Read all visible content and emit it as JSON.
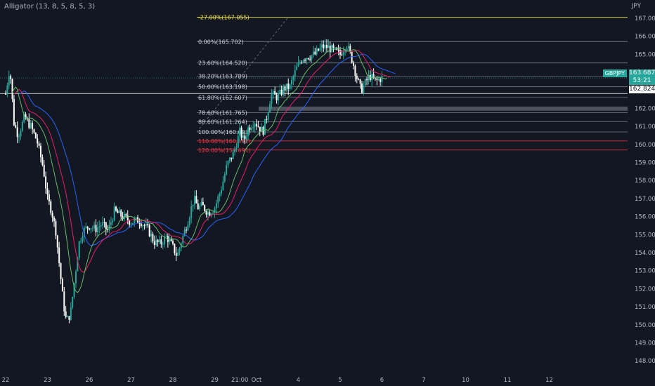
{
  "indicator": "Alligator (13, 8, 5, 8, 5, 3)",
  "currency": "JPY",
  "symbol": "GBPJPY",
  "current_price": "163.687",
  "countdown": "53:21",
  "level_price": "162.824",
  "colors": {
    "background": "#131722",
    "up": "#26a69a",
    "down": "#ef5350",
    "candle": "#ffffff",
    "jaw": "#2962ff",
    "teeth": "#e91e63",
    "lips": "#66bb6a",
    "fib": "#787b86",
    "fib_top": "#f0e442",
    "fib_ext": "#f23645"
  },
  "chart_data": {
    "type": "candlestick",
    "ylim": [
      147.5,
      167.7
    ],
    "y_ticks": [
      "148.000",
      "149.000",
      "150.000",
      "151.000",
      "152.000",
      "153.000",
      "154.000",
      "155.000",
      "156.000",
      "157.000",
      "158.000",
      "159.000",
      "160.000",
      "161.000",
      "162.000",
      "163.000",
      "164.000",
      "165.000",
      "166.000",
      "167.000"
    ],
    "x_ticks": [
      {
        "label": "22",
        "day": 0
      },
      {
        "label": "23",
        "day": 1
      },
      {
        "label": "26",
        "day": 2
      },
      {
        "label": "27",
        "day": 3
      },
      {
        "label": "28",
        "day": 4
      },
      {
        "label": "29",
        "day": 5
      },
      {
        "label": "21:00",
        "day": 5.6
      },
      {
        "label": "Oct",
        "day": 6
      },
      {
        "label": "4",
        "day": 7
      },
      {
        "label": "5",
        "day": 8
      },
      {
        "label": "6",
        "day": 9
      },
      {
        "label": "7",
        "day": 10
      },
      {
        "label": "10",
        "day": 11
      },
      {
        "label": "11",
        "day": 12
      },
      {
        "label": "12",
        "day": 13
      }
    ],
    "fib_levels": [
      {
        "label": "-27.00%(167.055)",
        "price": 167.055,
        "kind": "top"
      },
      {
        "label": "0.00%(165.702)",
        "price": 165.702,
        "kind": "normal"
      },
      {
        "label": "23.60%(164.520)",
        "price": 164.52,
        "kind": "normal"
      },
      {
        "label": "38.20%(163.789)",
        "price": 163.789,
        "kind": "normal"
      },
      {
        "label": "50.00%(163.198)",
        "price": 163.198,
        "kind": "normal"
      },
      {
        "label": "61.80%(162.607)",
        "price": 162.607,
        "kind": "normal"
      },
      {
        "label": "78.60%(161.765)",
        "price": 161.765,
        "kind": "normal"
      },
      {
        "label": "88.60%(161.264)",
        "price": 161.264,
        "kind": "normal"
      },
      {
        "label": "100.00%(160.693)",
        "price": 160.693,
        "kind": "normal"
      },
      {
        "label": "110.00%(160.192)",
        "price": 160.192,
        "kind": "ext"
      },
      {
        "label": "120.00%(159.691)",
        "price": 159.691,
        "kind": "ext"
      }
    ],
    "horizontal_line": 162.824,
    "close_path": [
      [
        0.0,
        162.8
      ],
      [
        0.1,
        164.3
      ],
      [
        0.2,
        161.2
      ],
      [
        0.3,
        160.5
      ],
      [
        0.45,
        161.5
      ],
      [
        0.6,
        161.0
      ],
      [
        0.75,
        160.2
      ],
      [
        0.9,
        158.7
      ],
      [
        1.0,
        157.0
      ],
      [
        1.1,
        156.3
      ],
      [
        1.2,
        155.2
      ],
      [
        1.3,
        153.0
      ],
      [
        1.38,
        151.2
      ],
      [
        1.45,
        150.2
      ],
      [
        1.55,
        150.6
      ],
      [
        1.65,
        152.5
      ],
      [
        1.75,
        154.5
      ],
      [
        1.85,
        155.2
      ],
      [
        2.0,
        155.5
      ],
      [
        2.15,
        155.3
      ],
      [
        2.3,
        155.6
      ],
      [
        2.45,
        155.2
      ],
      [
        2.6,
        156.3
      ],
      [
        2.8,
        156.0
      ],
      [
        3.0,
        155.7
      ],
      [
        3.2,
        155.8
      ],
      [
        3.4,
        155.3
      ],
      [
        3.55,
        154.6
      ],
      [
        3.7,
        154.5
      ],
      [
        3.85,
        154.9
      ],
      [
        4.0,
        154.3
      ],
      [
        4.1,
        153.8
      ],
      [
        4.2,
        154.6
      ],
      [
        4.35,
        155.7
      ],
      [
        4.5,
        157.0
      ],
      [
        4.6,
        156.5
      ],
      [
        4.7,
        156.6
      ],
      [
        4.85,
        156.2
      ],
      [
        5.0,
        156.5
      ],
      [
        5.15,
        157.5
      ],
      [
        5.3,
        158.9
      ],
      [
        5.45,
        159.5
      ],
      [
        5.6,
        160.7
      ],
      [
        5.7,
        160.2
      ],
      [
        5.8,
        160.9
      ],
      [
        5.95,
        161.3
      ],
      [
        6.05,
        161.0
      ],
      [
        6.15,
        160.7
      ],
      [
        6.25,
        161.6
      ],
      [
        6.35,
        162.8
      ],
      [
        6.5,
        162.6
      ],
      [
        6.65,
        163.1
      ],
      [
        6.8,
        163.2
      ],
      [
        6.95,
        164.2
      ],
      [
        7.1,
        164.8
      ],
      [
        7.25,
        164.9
      ],
      [
        7.4,
        165.0
      ],
      [
        7.55,
        165.4
      ],
      [
        7.7,
        165.4
      ],
      [
        7.85,
        165.2
      ],
      [
        8.0,
        165.0
      ],
      [
        8.15,
        165.6
      ],
      [
        8.3,
        164.6
      ],
      [
        8.4,
        163.7
      ],
      [
        8.5,
        163.0
      ],
      [
        8.6,
        163.4
      ],
      [
        8.7,
        163.8
      ],
      [
        8.85,
        163.5
      ],
      [
        9.0,
        163.7
      ]
    ]
  }
}
